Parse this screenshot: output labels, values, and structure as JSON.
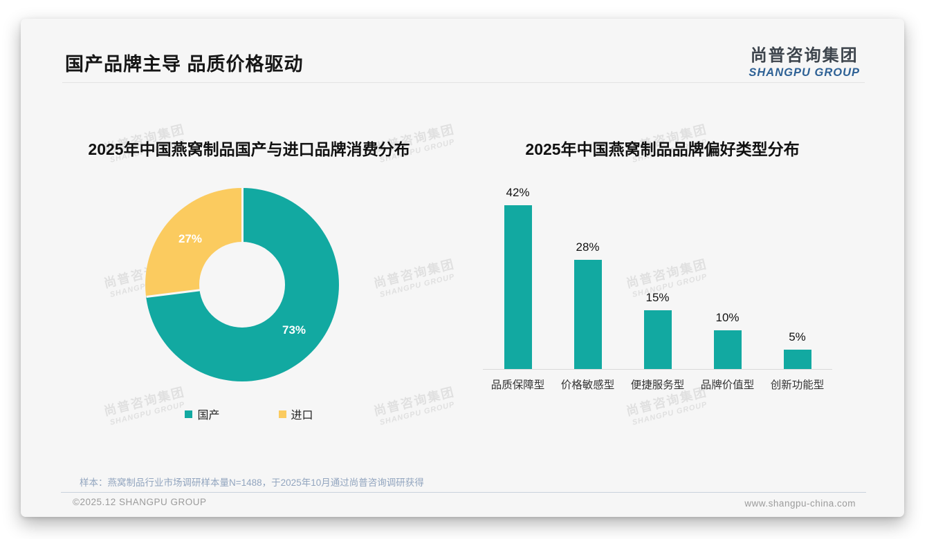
{
  "header": {
    "title": "国产品牌主导 品质价格驱动"
  },
  "brand": {
    "logo_cn": "尚普咨询集团",
    "logo_en": "SHANGPU GROUP"
  },
  "watermark": {
    "line1": "尚普咨询集团",
    "line2": "SHANGPU GROUP"
  },
  "colors": {
    "teal": "#12A9A1",
    "yellow": "#FBCB5F"
  },
  "chart_data": [
    {
      "type": "pie",
      "donut": true,
      "title": "2025年中国燕窝制品国产与进口品牌消费分布",
      "labels": [
        "国产",
        "进口"
      ],
      "values": [
        73,
        27
      ],
      "value_labels": [
        "73%",
        "27%"
      ],
      "colors": [
        "#12A9A1",
        "#FBCB5F"
      ],
      "legend_position": "bottom",
      "start_angle_deg": 0,
      "direction": "clockwise"
    },
    {
      "type": "bar",
      "title": "2025年中国燕窝制品品牌偏好类型分布",
      "categories": [
        "品质保障型",
        "价格敏感型",
        "便捷服务型",
        "品牌价值型",
        "创新功能型"
      ],
      "values": [
        42,
        28,
        15,
        10,
        5
      ],
      "value_labels": [
        "42%",
        "28%",
        "15%",
        "10%",
        "5%"
      ],
      "bar_color": "#12A9A1",
      "xlabel": "",
      "ylabel": "",
      "ylim": [
        0,
        45
      ],
      "grid": false,
      "value_labels_position": "above-bars"
    }
  ],
  "footer": {
    "sample_note": "样本：燕窝制品行业市场调研样本量N=1488，于2025年10月通过尚普咨询调研获得",
    "copyright": "©2025.12 SHANGPU GROUP",
    "website": "www.shangpu-china.com"
  }
}
